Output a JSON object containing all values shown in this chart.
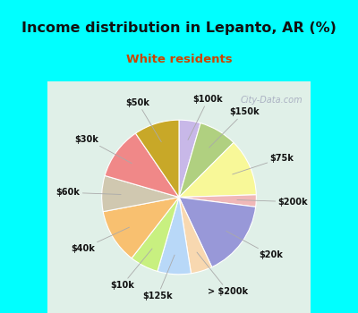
{
  "title": "Income distribution in Lepanto, AR (%)",
  "subtitle": "White residents",
  "title_color": "#111111",
  "subtitle_color": "#cc4400",
  "background_cyan": "#00ffff",
  "background_chart": "#dff0e8",
  "watermark": "City-Data.com",
  "labels": [
    "$100k",
    "$150k",
    "$75k",
    "$200k",
    "$20k",
    "> $200k",
    "$125k",
    "$10k",
    "$40k",
    "$60k",
    "$30k",
    "$50k"
  ],
  "values": [
    4.5,
    8.0,
    12.0,
    2.5,
    16.0,
    4.5,
    7.0,
    6.0,
    11.5,
    7.5,
    11.0,
    9.5
  ],
  "colors": [
    "#c8b8e8",
    "#b0d080",
    "#f8f898",
    "#f0b8b8",
    "#9898d8",
    "#f8d8b0",
    "#b8d8f8",
    "#c8f080",
    "#f8c070",
    "#d0c8b0",
    "#f08888",
    "#c8a828"
  ],
  "startangle": 90
}
